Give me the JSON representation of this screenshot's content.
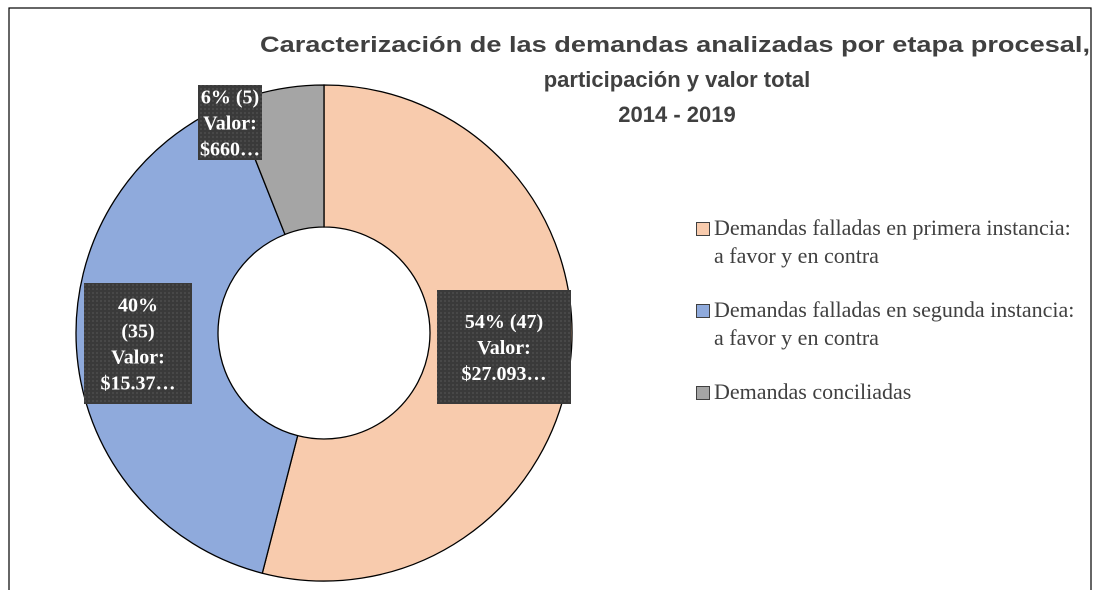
{
  "chart_data": {
    "type": "donut",
    "title": [
      "Caracterización de las demandas analizadas por etapa procesal,",
      "participación y valor total",
      "2014 - 2019"
    ],
    "categories": [
      "Demandas falladas en primera instancia: a favor y en contra",
      "Demandas falladas en segunda instancia: a favor y en contra",
      "Demandas conciliadas"
    ],
    "values": [
      54,
      40,
      6
    ],
    "value_labels": [
      [
        "54% (47)",
        "Valor:",
        "$27.093…"
      ],
      [
        "40%",
        "(35)",
        "Valor:",
        "$15.37…"
      ],
      [
        "6% (5)",
        "Valor:",
        "$660…"
      ]
    ],
    "colors": [
      "#f8cbad",
      "#8faadc",
      "#a5a5a5"
    ],
    "legend": "right"
  }
}
